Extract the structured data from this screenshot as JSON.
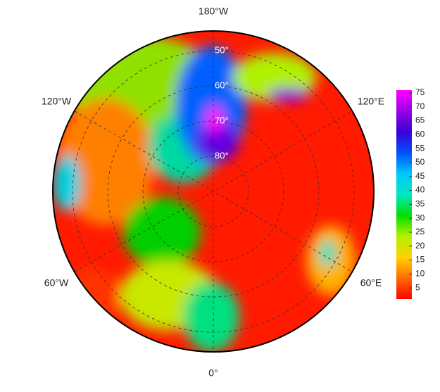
{
  "map": {
    "longitude_labels": {
      "top": "180°W",
      "bottom": "0°",
      "upper_left": "120°W",
      "upper_right": "120°E",
      "lower_left": "60°W",
      "lower_right": "60°E"
    },
    "latitude_labels": [
      "50°",
      "60°",
      "70°",
      "80°"
    ],
    "colorbar": {
      "lim": [
        1,
        76
      ],
      "ticks": [
        5,
        10,
        15,
        20,
        25,
        30,
        35,
        40,
        45,
        50,
        55,
        60,
        65,
        70,
        75
      ],
      "colors": [
        "#ff0000",
        "#ff6a00",
        "#ffd200",
        "#b4f000",
        "#00e000",
        "#00e8c0",
        "#00c8ff",
        "#0050ff",
        "#3a00d8",
        "#9a00e8",
        "#ff00ff"
      ]
    }
  }
}
